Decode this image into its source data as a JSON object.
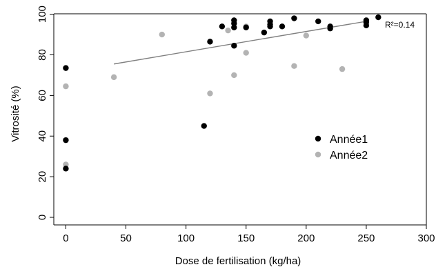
{
  "chart_data": {
    "type": "scatter",
    "title": "",
    "xlabel": "Dose de fertilisation (kg/ha)",
    "ylabel": "Vitrosité (%)",
    "xlim": [
      -10,
      300
    ],
    "ylim": [
      0,
      100
    ],
    "xticks": [
      0,
      50,
      100,
      150,
      200,
      250,
      300
    ],
    "yticks": [
      0,
      20,
      40,
      60,
      80,
      100
    ],
    "grid": false,
    "legend_position": "right",
    "series": [
      {
        "name": "Année1",
        "color": "#000000",
        "points": [
          [
            0,
            73.5
          ],
          [
            0,
            38
          ],
          [
            0,
            24
          ],
          [
            115,
            45
          ],
          [
            120,
            86.5
          ],
          [
            130,
            94
          ],
          [
            140,
            97
          ],
          [
            140,
            95.5
          ],
          [
            140,
            93.5
          ],
          [
            140,
            84.5
          ],
          [
            150,
            93.5
          ],
          [
            165,
            91
          ],
          [
            170,
            96.5
          ],
          [
            170,
            95
          ],
          [
            170,
            94
          ],
          [
            180,
            94
          ],
          [
            190,
            98
          ],
          [
            210,
            96.5
          ],
          [
            220,
            94
          ],
          [
            220,
            93
          ],
          [
            250,
            97
          ],
          [
            250,
            96
          ],
          [
            250,
            94.5
          ],
          [
            260,
            98.5
          ]
        ]
      },
      {
        "name": "Année2",
        "color": "#b3b3b3",
        "points": [
          [
            0,
            64.5
          ],
          [
            0,
            26
          ],
          [
            40,
            69
          ],
          [
            80,
            90
          ],
          [
            120,
            61
          ],
          [
            135,
            92
          ],
          [
            140,
            70
          ],
          [
            150,
            94
          ],
          [
            150,
            81
          ],
          [
            190,
            74.5
          ],
          [
            200,
            89.5
          ],
          [
            230,
            73
          ]
        ]
      }
    ],
    "trendline": {
      "color": "#808080",
      "points": [
        [
          40,
          75.5
        ],
        [
          250,
          96.5
        ]
      ]
    },
    "annotation": {
      "text": "R²=0.14"
    }
  }
}
